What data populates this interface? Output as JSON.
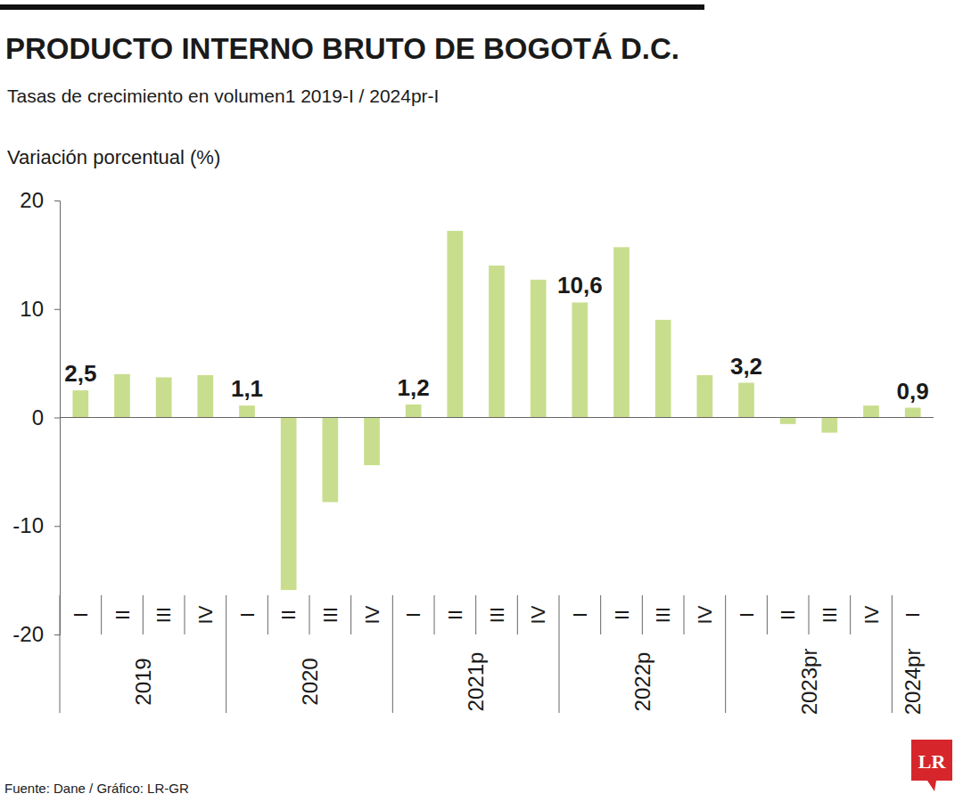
{
  "chart_data": {
    "type": "bar",
    "title": "PRODUCTO INTERNO BRUTO DE BOGOTÁ D.C.",
    "subtitle": "Tasas de crecimiento en volumen1 2019-I / 2024pr-I",
    "y_label": "Variación porcentual (%)",
    "source": "Fuente: Dane / Gráfico: LR-GR",
    "logo": "LR",
    "categories": [
      "I",
      "II",
      "III",
      "IV",
      "I",
      "II",
      "III",
      "IV",
      "I",
      "II",
      "III",
      "IV",
      "I",
      "II",
      "III",
      "IV",
      "I",
      "II",
      "III",
      "IV",
      "I"
    ],
    "group": [
      "2019",
      "2019",
      "2019",
      "2019",
      "2020",
      "2020",
      "2020",
      "2020",
      "2021p",
      "2021p",
      "2021p",
      "2021p",
      "2022p",
      "2022p",
      "2022p",
      "2022p",
      "2023pr",
      "2023pr",
      "2023pr",
      "2023pr",
      "2024pr"
    ],
    "values": [
      2.5,
      4.0,
      3.7,
      3.9,
      1.1,
      -15.9,
      -7.8,
      -4.4,
      1.2,
      17.2,
      14.0,
      12.7,
      10.6,
      15.7,
      9.0,
      3.9,
      3.2,
      -0.6,
      -1.4,
      1.1,
      0.9
    ],
    "value_labels": [
      "2,5",
      null,
      null,
      null,
      "1,1",
      null,
      null,
      null,
      "1,2",
      null,
      null,
      null,
      "10,6",
      null,
      null,
      null,
      "3,2",
      null,
      null,
      null,
      "0,9"
    ],
    "data_labels": true,
    "color": "#c8de8e",
    "ylim": [
      -20,
      20
    ],
    "yticks": [
      -20,
      -10,
      0,
      10,
      20
    ],
    "grid": false
  }
}
